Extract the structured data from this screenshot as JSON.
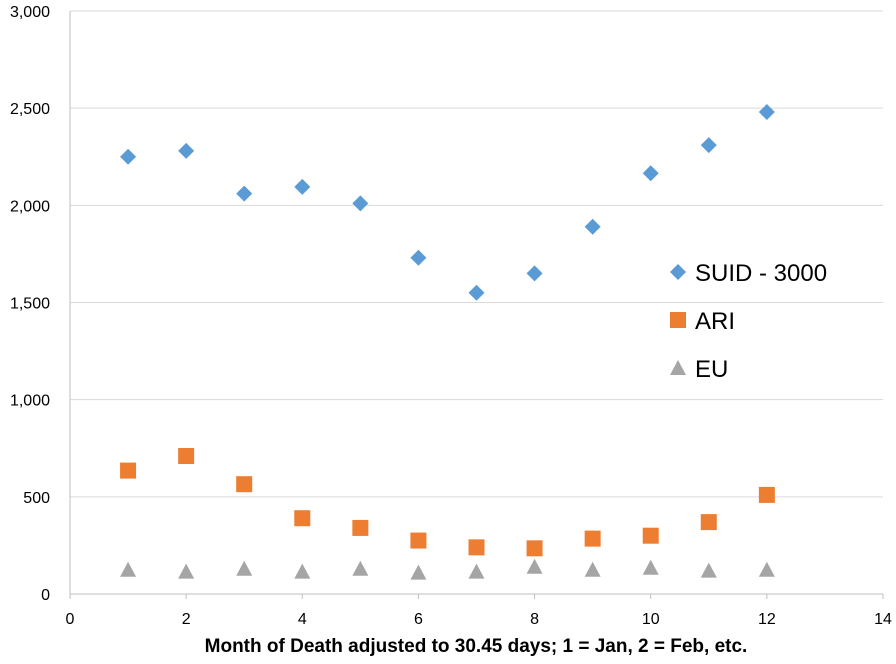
{
  "chart_data": {
    "type": "scatter",
    "title": "",
    "xlabel": "Month of Death adjusted to 30.45 days; 1 = Jan, 2 = Feb, etc.",
    "ylabel": "",
    "xlim": [
      0,
      14
    ],
    "ylim": [
      0,
      3000
    ],
    "xticks": [
      0,
      2,
      4,
      6,
      8,
      10,
      12,
      14
    ],
    "yticks": [
      0,
      500,
      1000,
      1500,
      2000,
      2500,
      3000
    ],
    "xtick_labels": [
      "0",
      "2",
      "4",
      "6",
      "8",
      "10",
      "12",
      "14"
    ],
    "ytick_labels": [
      "0",
      "500",
      "1,000",
      "1,500",
      "2,000",
      "2,500",
      "3,000"
    ],
    "grid": "horizontal",
    "legend_position": "right",
    "x": [
      1,
      2,
      3,
      4,
      5,
      6,
      7,
      8,
      9,
      10,
      11,
      12
    ],
    "series": [
      {
        "name": "SUID - 3000",
        "marker": "diamond",
        "color": "#5b9bd5",
        "values": [
          2250,
          2280,
          2060,
          2095,
          2010,
          1730,
          1550,
          1650,
          1890,
          2165,
          2310,
          2480
        ]
      },
      {
        "name": "ARI",
        "marker": "square",
        "color": "#ed7d31",
        "values": [
          635,
          710,
          565,
          390,
          340,
          275,
          240,
          235,
          285,
          300,
          370,
          510
        ]
      },
      {
        "name": "EU",
        "marker": "triangle",
        "color": "#a5a5a5",
        "values": [
          125,
          115,
          130,
          115,
          130,
          110,
          115,
          140,
          125,
          135,
          120,
          125
        ]
      }
    ]
  }
}
